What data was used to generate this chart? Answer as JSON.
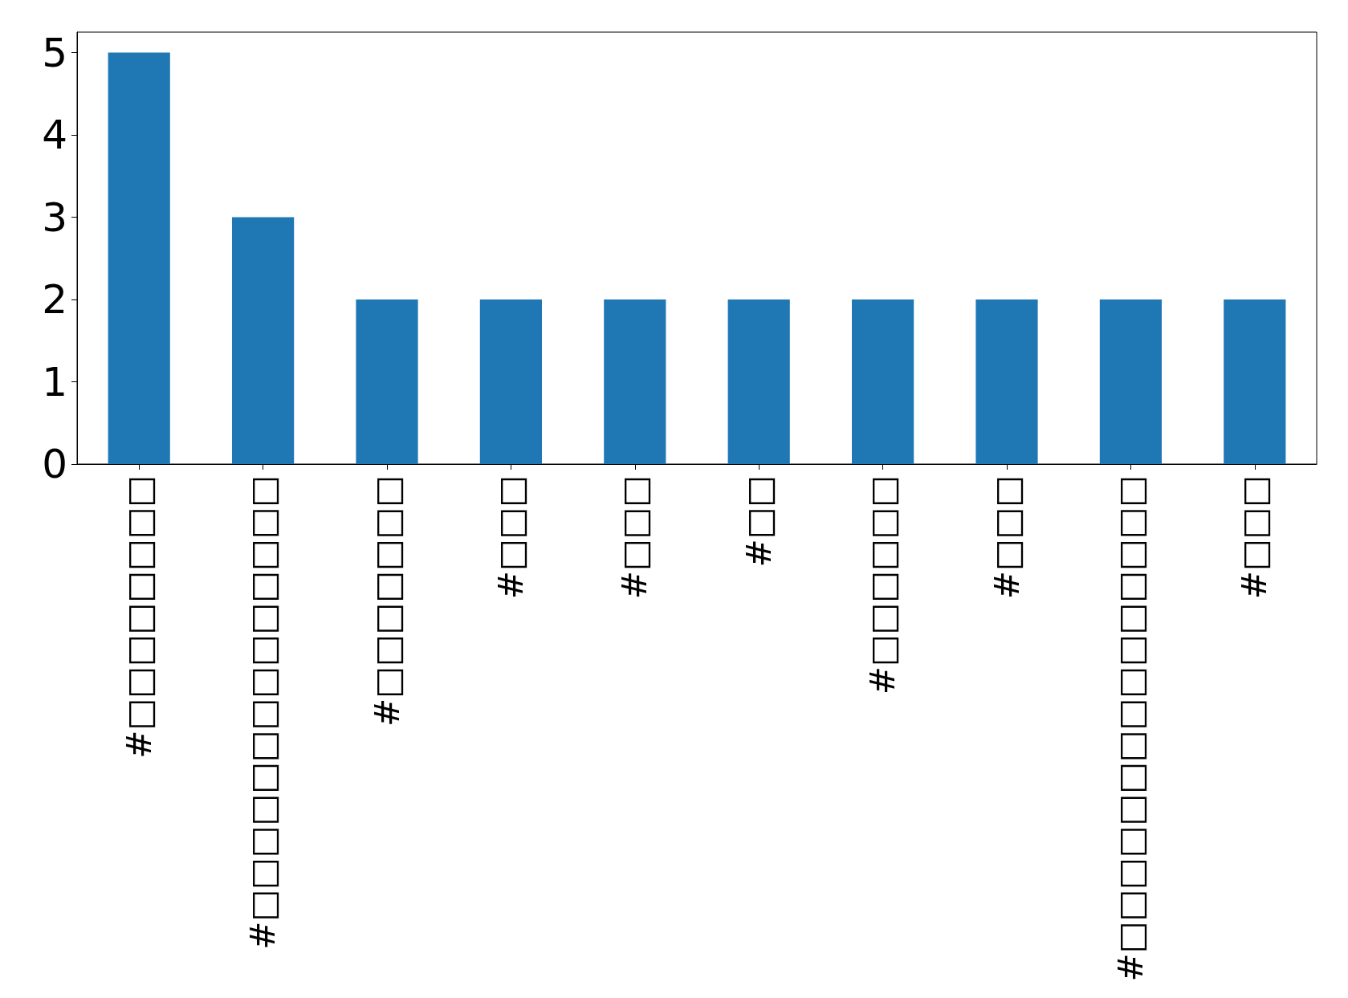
{
  "chart_data": {
    "type": "bar",
    "categories": [
      "#□□□□□□□□",
      "#□□□□□□□□□□□□□□",
      "#□□□□□□□",
      "#□□□",
      "#□□□",
      "#□□",
      "#□□□□□□",
      "#□□□",
      "#□□□□□□□□□□□□□□□",
      "#□□□"
    ],
    "values": [
      5,
      3,
      2,
      2,
      2,
      2,
      2,
      2,
      2,
      2
    ],
    "color": "#1f77b4",
    "ylim": [
      0,
      5.25
    ],
    "yticks": [
      0,
      1,
      2,
      3,
      4,
      5
    ]
  }
}
